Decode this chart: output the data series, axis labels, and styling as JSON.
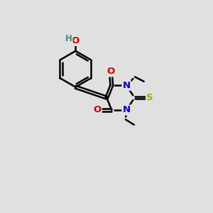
{
  "bg_color": "#e0e0e0",
  "atom_colors": {
    "C": "#000000",
    "N": "#0000cc",
    "O": "#cc0000",
    "S": "#aaaa00",
    "H": "#4a8888"
  },
  "bond_color": "#000000",
  "bond_width": 1.8,
  "font_size": 9.5
}
